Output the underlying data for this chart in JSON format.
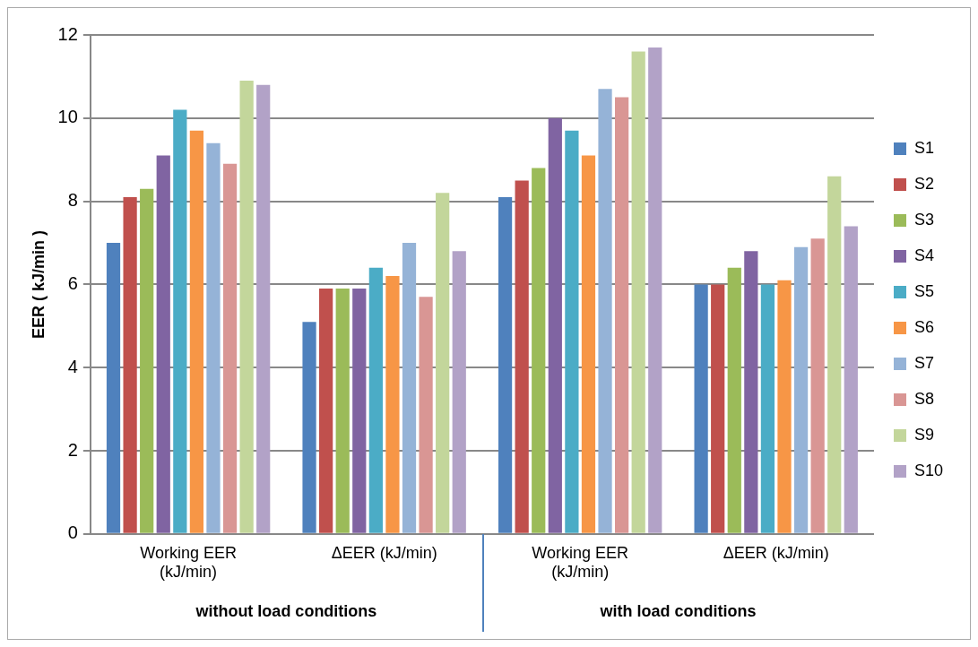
{
  "chart_data": {
    "type": "bar",
    "ylabel": "EER ( kJ/min )",
    "categories": [
      "Working EER (kJ/min)",
      "ΔEER (kJ/min)",
      "Working EER (kJ/min)",
      "ΔEER (kJ/min)"
    ],
    "series": [
      {
        "name": "S1",
        "color": "#4f81bd",
        "values": [
          7.0,
          5.1,
          8.1,
          6.0
        ]
      },
      {
        "name": "S2",
        "color": "#c0504d",
        "values": [
          8.1,
          5.9,
          8.5,
          6.0
        ]
      },
      {
        "name": "S3",
        "color": "#9bbb59",
        "values": [
          8.3,
          5.9,
          8.8,
          6.4
        ]
      },
      {
        "name": "S4",
        "color": "#8064a2",
        "values": [
          9.1,
          5.9,
          10.0,
          6.8
        ]
      },
      {
        "name": "S5",
        "color": "#4bacc6",
        "values": [
          10.2,
          6.4,
          9.7,
          6.0
        ]
      },
      {
        "name": "S6",
        "color": "#f79646",
        "values": [
          9.7,
          6.2,
          9.1,
          6.1
        ]
      },
      {
        "name": "S7",
        "color": "#95b3d7",
        "values": [
          9.4,
          7.0,
          10.7,
          6.9
        ]
      },
      {
        "name": "S8",
        "color": "#d99694",
        "values": [
          8.9,
          5.7,
          10.5,
          7.1
        ]
      },
      {
        "name": "S9",
        "color": "#c3d69b",
        "values": [
          10.9,
          8.2,
          11.6,
          8.6
        ]
      },
      {
        "name": "S10",
        "color": "#b2a2c7",
        "values": [
          10.8,
          6.8,
          11.7,
          7.4
        ]
      }
    ],
    "annotations": [
      "without load conditions",
      "with load conditions"
    ],
    "ylim": [
      0,
      12
    ],
    "yticks": [
      0,
      2,
      4,
      6,
      8,
      10,
      12
    ],
    "grid": "y",
    "legend": "right"
  }
}
